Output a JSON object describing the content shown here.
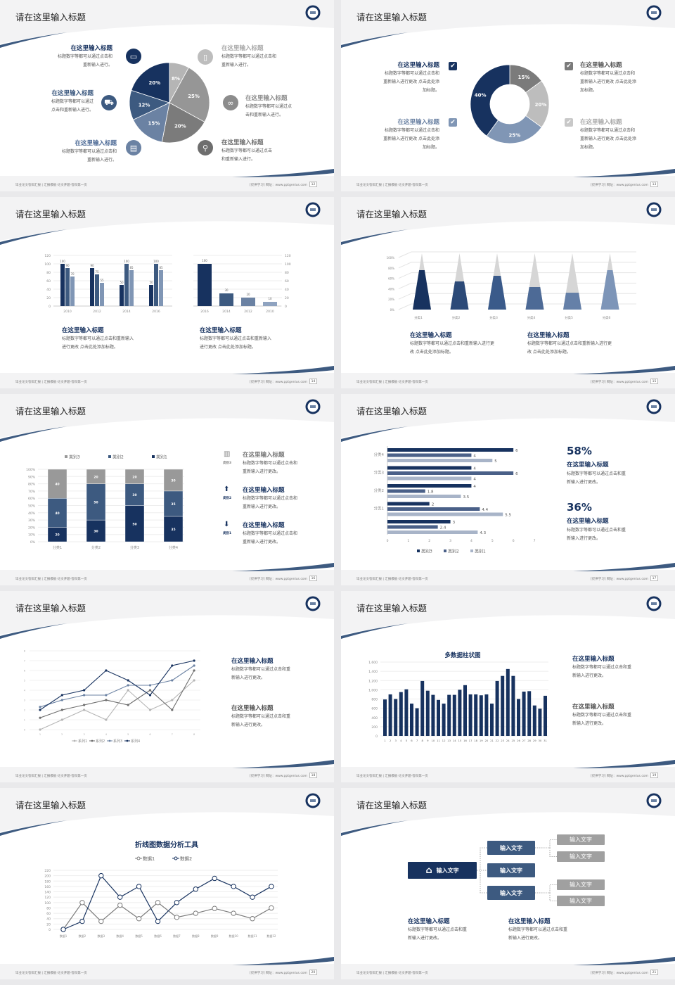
{
  "colors": {
    "navy": "#17325f",
    "slate": "#3d5a80",
    "light_slate": "#8096b5",
    "gray": "#8c8c8c",
    "light_gray": "#bdbdbd"
  },
  "footer_left": "毕业论文答辩汇报 | 汇报模板·论文开题·答辩第一页",
  "footer_right": "[仅供学习]  网址：www.pptgenius.com",
  "slides": [
    {
      "title": "请在这里输入标题",
      "page": "12",
      "chart_data": {
        "type": "pie",
        "values": [
          8,
          25,
          20,
          15,
          12,
          20
        ],
        "labels": [
          "8%",
          "25%",
          "20%",
          "15%",
          "12%",
          "20%"
        ],
        "colors": [
          "#b5b5b5",
          "#969696",
          "#7b7b7b",
          "#6b82a3",
          "#3d5a80",
          "#17325f"
        ]
      },
      "items": [
        {
          "heading": "在这里输入标题",
          "body": "标题数字等都可以通过点击和\n重新输入进行。",
          "icon": "monitor-icon"
        },
        {
          "heading": "在这里输入标题",
          "body": "标题数字等都可以通过\n点击和重新输入进行。",
          "icon": "car-icon"
        },
        {
          "heading": "在这里输入标题",
          "body": "标题数字等都可以通过点击和\n重新输入进行。",
          "icon": "book-icon"
        },
        {
          "heading": "在这里输入标题",
          "body": "标题数字等都可以通过点击和\n重新输入进行。",
          "icon": "phone-icon"
        },
        {
          "heading": "在这里输入标题",
          "body": "标题数字等都可以通过点\n击和重新输入进行。",
          "icon": "binoculars-icon"
        },
        {
          "heading": "在这里输入标题",
          "body": "标题数字等都可以通过点击\n和重新输入进行。",
          "icon": "bicycle-icon"
        }
      ]
    },
    {
      "title": "请在这里输入标题",
      "page": "13",
      "chart_data": {
        "type": "pie",
        "donut": true,
        "values": [
          15,
          20,
          25,
          40
        ],
        "labels": [
          "15%",
          "20%",
          "25%",
          "40%"
        ],
        "colors": [
          "#7b7b7b",
          "#bdbdbd",
          "#8096b5",
          "#17325f"
        ]
      },
      "items": [
        {
          "heading": "在这里输入标题",
          "body": "标题数字等都可以通过点击和\n重新输入进行更改 点击此处添\n加标题。",
          "icon": "checkbox-icon"
        },
        {
          "heading": "在这里输入标题",
          "body": "标题数字等都可以通过点击和\n重新输入进行更改 点击此处添\n加标题。",
          "icon": "checkbox-icon"
        },
        {
          "heading": "在这里输入标题",
          "body": "标题数字等都可以通过点击和\n重新输入进行更改 点击此处添\n加标题。",
          "icon": "checkbox-icon"
        },
        {
          "heading": "在这里输入标题",
          "body": "标题数字等都可以通过点击和\n重新输入进行更改 点击此处添\n加标题。",
          "icon": "checkbox-icon"
        }
      ]
    },
    {
      "title": "请在这里输入标题",
      "page": "14",
      "chart_data": [
        {
          "type": "bar",
          "categories": [
            "2010",
            "2012",
            "2014",
            "2016"
          ],
          "series": [
            {
              "values": [
                100,
                90,
                50,
                50
              ]
            },
            {
              "values": [
                90,
                75,
                100,
                100
              ]
            },
            {
              "values": [
                70,
                55,
                85,
                85
              ]
            }
          ],
          "ylim": [
            0,
            120
          ],
          "yticks": [
            "0",
            "20",
            "40",
            "60",
            "80",
            "100",
            "120"
          ]
        },
        {
          "type": "bar",
          "categories": [
            "2016",
            "2014",
            "2012",
            "2010"
          ],
          "values": [
            100,
            30,
            20,
            10
          ],
          "ylim": [
            0,
            120
          ],
          "yticks": [
            "0",
            "20",
            "40",
            "60",
            "80",
            "100",
            "120"
          ]
        }
      ],
      "items": [
        {
          "heading": "在这里输入标题",
          "body": "标题数字等都可以通过点击和重新输入\n进行更改 点击此处添加标题。"
        },
        {
          "heading": "在这里输入标题",
          "body": "标题数字等都可以通过点击和重新输入\n进行更改 点击此处添加标题。"
        }
      ]
    },
    {
      "title": "请在这里输入标题",
      "page": "15",
      "chart_data": {
        "type": "bar",
        "style": "3d-pyramid",
        "categories": [
          "分类1",
          "分类2",
          "分类3",
          "分类4",
          "分类5",
          "分类6"
        ],
        "values": [
          70,
          50,
          60,
          40,
          30,
          70
        ],
        "ylim": [
          0,
          100
        ],
        "yticks": [
          "0%",
          "20%",
          "40%",
          "60%",
          "80%",
          "100%"
        ]
      },
      "items": [
        {
          "heading": "在这里输入标题",
          "body": "标题数字等都可以通过点击和重新输入进行更\n改 点击此处添加标题。"
        },
        {
          "heading": "在这里输入标题",
          "body": "标题数字等都可以通过点击和重新输入进行更\n改 点击此处添加标题。"
        }
      ]
    },
    {
      "title": "请在这里输入标题",
      "page": "16",
      "chart_data": {
        "type": "bar",
        "stacked": true,
        "categories": [
          "分类1",
          "分类2",
          "分类3",
          "分类4"
        ],
        "series": [
          {
            "name": "类别1",
            "values": [
              20,
              30,
              50,
              35
            ]
          },
          {
            "name": "类别2",
            "values": [
              40,
              50,
              30,
              35
            ]
          },
          {
            "name": "类别3",
            "values": [
              40,
              20,
              20,
              30
            ]
          }
        ],
        "legend_order": [
          "类别3",
          "类别2",
          "类别1"
        ],
        "legend": "top",
        "ylim": [
          0,
          100
        ],
        "yticks": [
          "0%",
          "10%",
          "20%",
          "30%",
          "40%",
          "50%",
          "60%",
          "70%",
          "80%",
          "90%",
          "100%"
        ]
      },
      "items": [
        {
          "heading": "在这里输入标题",
          "body": "标题数字等都可以通过点击和\n重新输入进行更改。",
          "icon": "bar-chart-icon",
          "label": "类别3"
        },
        {
          "heading": "在这里输入标题",
          "body": "标题数字等都可以通过点击和\n重新输入进行更改。",
          "icon": "upload-icon",
          "label": "类别2"
        },
        {
          "heading": "在这里输入标题",
          "body": "标题数字等都可以通过点击和\n重新输入进行更改。",
          "icon": "download-icon",
          "label": "类别1"
        }
      ]
    },
    {
      "title": "请在这里输入标题",
      "page": "17",
      "chart_data": {
        "type": "bar",
        "orientation": "horizontal",
        "categories": [
          "分类4",
          "分类3",
          "分类2",
          "分类1",
          ""
        ],
        "series": [
          {
            "name": "类别3",
            "values": [
              6,
              4,
              4,
              2,
              3
            ]
          },
          {
            "name": "类别2",
            "values": [
              4,
              6,
              1.8,
              4.4,
              2.4
            ]
          },
          {
            "name": "类别1",
            "values": [
              5,
              4,
              3.5,
              5.5,
              4.3
            ]
          }
        ],
        "xlim": [
          0,
          7
        ],
        "xticks": [
          "0",
          "1",
          "2",
          "3",
          "4",
          "5",
          "6",
          "7"
        ],
        "legend": "bottom"
      },
      "stats": [
        {
          "value": "58%",
          "heading": "在这里输入标题",
          "body": "标题数字等都可以通过点击和重\n新输入进行更改。"
        },
        {
          "value": "36%",
          "heading": "在这里输入标题",
          "body": "标题数字等都可以通过点击和重\n新输入进行更改。"
        }
      ]
    },
    {
      "title": "请在这里输入标题",
      "page": "18",
      "chart_data": {
        "type": "line",
        "x": [
          1,
          2,
          3,
          4,
          5,
          6,
          7,
          8
        ],
        "series": [
          {
            "name": "系列1",
            "values": [
              0,
              1,
              2,
              1,
              4,
              2,
              3,
              5
            ]
          },
          {
            "name": "系列2",
            "values": [
              1.2,
              2,
              2.5,
              3,
              2.5,
              4,
              2,
              6
            ]
          },
          {
            "name": "系列3",
            "values": [
              2.3,
              3,
              3.5,
              3.5,
              4.5,
              4.5,
              5,
              6.5
            ]
          },
          {
            "name": "系列4",
            "values": [
              2,
              3.5,
              4,
              6,
              5,
              3.5,
              6.5,
              7
            ]
          }
        ],
        "ylim": [
          0,
          8
        ],
        "legend": "bottom",
        "colors": [
          "#b5b5b5",
          "#6e6e6e",
          "#6b82a3",
          "#17325f"
        ]
      },
      "items": [
        {
          "heading": "在这里输入标题",
          "body": "标题数字等都可以通过点击和重\n新输入进行更改。"
        },
        {
          "heading": "在这里输入标题",
          "body": "标题数字等都可以通过点击和重\n新输入进行更改。"
        }
      ]
    },
    {
      "title": "请在这里输入标题",
      "page": "19",
      "chart_data": {
        "type": "bar",
        "title": "多数据柱状图",
        "categories": [
          "1",
          "2",
          "3",
          "4",
          "5",
          "6",
          "7",
          "8",
          "9",
          "10",
          "11",
          "12",
          "13",
          "14",
          "15",
          "16",
          "17",
          "18",
          "19",
          "20",
          "21",
          "22",
          "23",
          "24",
          "25",
          "26",
          "27",
          "28",
          "29",
          "30",
          "31"
        ],
        "values": [
          790,
          900,
          800,
          950,
          1010,
          700,
          600,
          1190,
          980,
          890,
          780,
          700,
          890,
          890,
          1000,
          1100,
          900,
          900,
          880,
          900,
          700,
          1190,
          1300,
          1450,
          1300,
          800,
          960,
          970,
          660,
          590,
          870
        ],
        "ylim": [
          0,
          1600
        ],
        "yticks": [
          "0",
          "200",
          "400",
          "600",
          "800",
          "1,000",
          "1,200",
          "1,400",
          "1,600"
        ]
      },
      "items": [
        {
          "heading": "在这里输入标题",
          "body": "标题数字等都可以通过点击和重\n新输入进行更改。"
        },
        {
          "heading": "在这里输入标题",
          "body": "标题数字等都可以通过点击和重\n新输入进行更改。"
        }
      ]
    },
    {
      "title": "请在这里输入标题",
      "page": "20",
      "chart_data": {
        "type": "line",
        "title": "折线图数据分析工具",
        "categories": [
          "数据1",
          "数据2",
          "数据3",
          "数据4",
          "数据5",
          "数据6",
          "数据7",
          "数据8",
          "数据9",
          "数据10",
          "数据11",
          "数据12"
        ],
        "series": [
          {
            "name": "数据1",
            "values": [
              0,
              100,
              30,
              90,
              40,
              100,
              45,
              60,
              78,
              60,
              40,
              80
            ]
          },
          {
            "name": "数据2",
            "values": [
              0,
              30,
              200,
              120,
              160,
              30,
              100,
              150,
              190,
              160,
              120,
              160
            ]
          }
        ],
        "ylim": [
          0,
          220
        ],
        "yticks": [
          "0",
          "20",
          "40",
          "60",
          "80",
          "100",
          "120",
          "140",
          "160",
          "180",
          "200",
          "220"
        ],
        "legend": "top",
        "colors": [
          "#7b7b7b",
          "#17325f"
        ]
      }
    },
    {
      "title": "请在这里输入标题",
      "page": "21",
      "diagram": {
        "root": "输入文字",
        "mid": [
          "输入文字",
          "输入文字",
          "输入文字"
        ],
        "leaves": [
          "输入文字",
          "输入文字",
          "输入文字",
          "输入文字"
        ]
      },
      "items": [
        {
          "heading": "在这里输入标题",
          "body": "标题数字等都可以通过点击和重\n新输入进行更改。"
        },
        {
          "heading": "在这里输入标题",
          "body": "标题数字等都可以通过点击和重\n新输入进行更改。"
        }
      ]
    }
  ]
}
